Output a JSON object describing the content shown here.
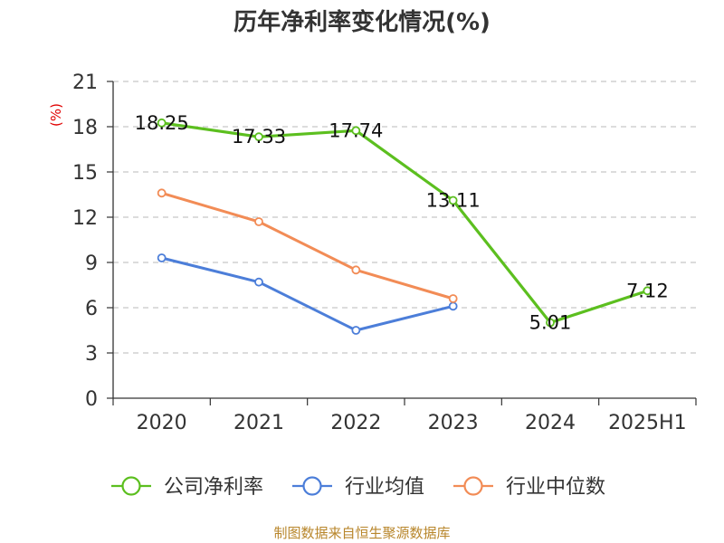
{
  "chart_data": {
    "type": "line",
    "title": "历年净利率变化情况(%)",
    "unit_label": "(%)",
    "categories": [
      "2020",
      "2021",
      "2022",
      "2023",
      "2024",
      "2025H1"
    ],
    "y_ticks": [
      "0",
      "3",
      "6",
      "9",
      "12",
      "15",
      "18",
      "21"
    ],
    "ylim": [
      0,
      21
    ],
    "grid": true,
    "legend_position": "bottom",
    "series": [
      {
        "name": "公司净利率",
        "color": "#5cbf1f",
        "values": [
          18.25,
          17.33,
          17.74,
          13.11,
          5.01,
          7.12
        ],
        "labels": [
          "18.25",
          "17.33",
          "17.74",
          "13.11",
          "5.01",
          "7.12"
        ]
      },
      {
        "name": "行业均值",
        "color": "#4c7ed9",
        "values": [
          9.3,
          7.7,
          4.5,
          6.1,
          null,
          null
        ]
      },
      {
        "name": "行业中位数",
        "color": "#f28c56",
        "values": [
          13.6,
          11.7,
          8.5,
          6.6,
          null,
          null
        ]
      }
    ],
    "source": "制图数据来自恒生聚源数据库"
  }
}
